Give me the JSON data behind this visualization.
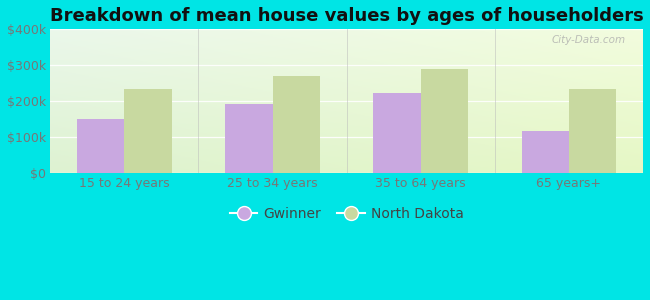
{
  "title": "Breakdown of mean house values by ages of householders",
  "categories": [
    "15 to 24 years",
    "25 to 34 years",
    "35 to 64 years",
    "65 years+"
  ],
  "gwinner_values": [
    150000,
    193000,
    222000,
    117000
  ],
  "north_dakota_values": [
    235000,
    270000,
    290000,
    235000
  ],
  "gwinner_color": "#c9a8e0",
  "north_dakota_color": "#c8d9a0",
  "ylim": [
    0,
    400000
  ],
  "yticks": [
    0,
    100000,
    200000,
    300000,
    400000
  ],
  "ytick_labels": [
    "$0",
    "$100k",
    "$200k",
    "$300k",
    "$400k"
  ],
  "background_color": "#00e5e5",
  "bar_width": 0.32,
  "legend_labels": [
    "Gwinner",
    "North Dakota"
  ],
  "watermark": "City-Data.com",
  "title_fontsize": 13,
  "tick_fontsize": 9,
  "legend_fontsize": 10,
  "bg_colors": [
    "#e8f5e8",
    "#f5faf5",
    "#eaf5f0",
    "#d8eed8"
  ],
  "grid_color": "#ffffff",
  "tick_color": "#777777"
}
